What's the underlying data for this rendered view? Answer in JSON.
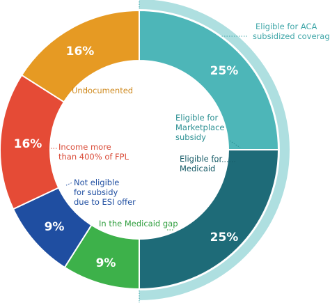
{
  "chart_data": {
    "type": "pie",
    "variant": "donut",
    "title": "",
    "categories": [
      "Eligible for Marketplace subsidy",
      "Eligible for Medicaid",
      "In the Medicaid gap",
      "Not eligible for subsidy due to ESI offer",
      "Income more than 400% of FPL",
      "Undocumented"
    ],
    "values": [
      25,
      25,
      9,
      9,
      16,
      16
    ],
    "value_labels": [
      "25%",
      "25%",
      "9%",
      "9%",
      "16%",
      "16%"
    ],
    "label_lines": [
      [
        "Eligible for",
        "Marketplace",
        "subsidy"
      ],
      [
        "Eligible for",
        "Medicaid"
      ],
      [
        "In the Medicaid gap"
      ],
      [
        "Not eligible",
        "for subsidy",
        "due to ESI offer"
      ],
      [
        "Income more",
        "than 400% of FPL"
      ],
      [
        "Undocumented"
      ]
    ],
    "colors": [
      "#4db6b8",
      "#1e6b78",
      "#3db14a",
      "#1f4ea1",
      "#e54b36",
      "#e69a23"
    ],
    "label_colors": [
      "#2a8f92",
      "#155a66",
      "#2f9e3e",
      "#1f4ea1",
      "#d94a37",
      "#cf8a1f"
    ],
    "bracket": {
      "lines": [
        "Eligible for ACA",
        "subsidized coverage"
      ],
      "color": "#aedfe0",
      "text_color": "#3fa6a8"
    }
  }
}
